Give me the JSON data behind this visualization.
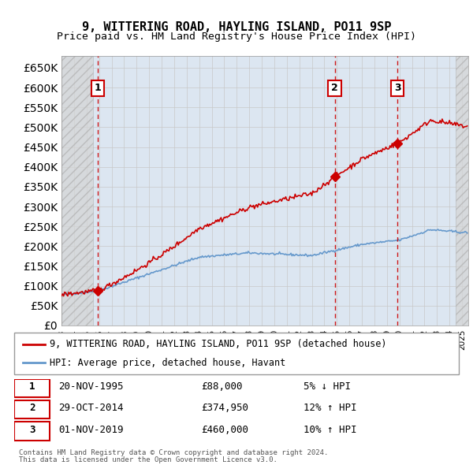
{
  "title": "9, WITTERING ROAD, HAYLING ISLAND, PO11 9SP",
  "subtitle": "Price paid vs. HM Land Registry's House Price Index (HPI)",
  "legend_line1": "9, WITTERING ROAD, HAYLING ISLAND, PO11 9SP (detached house)",
  "legend_line2": "HPI: Average price, detached house, Havant",
  "footer1": "Contains HM Land Registry data © Crown copyright and database right 2024.",
  "footer2": "This data is licensed under the Open Government Licence v3.0.",
  "transactions": [
    {
      "num": 1,
      "date": "20-NOV-1995",
      "price": 88000,
      "pct": "5% ↓ HPI",
      "year": 1995.9
    },
    {
      "num": 2,
      "date": "29-OCT-2014",
      "price": 374950,
      "pct": "12% ↑ HPI",
      "year": 2014.83
    },
    {
      "num": 3,
      "date": "01-NOV-2019",
      "price": 460000,
      "pct": "10% ↑ HPI",
      "year": 2019.84
    }
  ],
  "ylim": [
    0,
    680000
  ],
  "yticks": [
    0,
    50000,
    100000,
    150000,
    200000,
    250000,
    300000,
    350000,
    400000,
    450000,
    500000,
    550000,
    600000,
    650000
  ],
  "xlim_start": 1993.0,
  "xlim_end": 2025.5,
  "hatch_color": "#c8c8c8",
  "grid_color": "#c8c8c8",
  "bg_color": "#dce6f1",
  "hatch_bg": "#e8e8e8",
  "red_line_color": "#cc0000",
  "blue_line_color": "#6699cc",
  "transaction_line_color": "#cc0000"
}
